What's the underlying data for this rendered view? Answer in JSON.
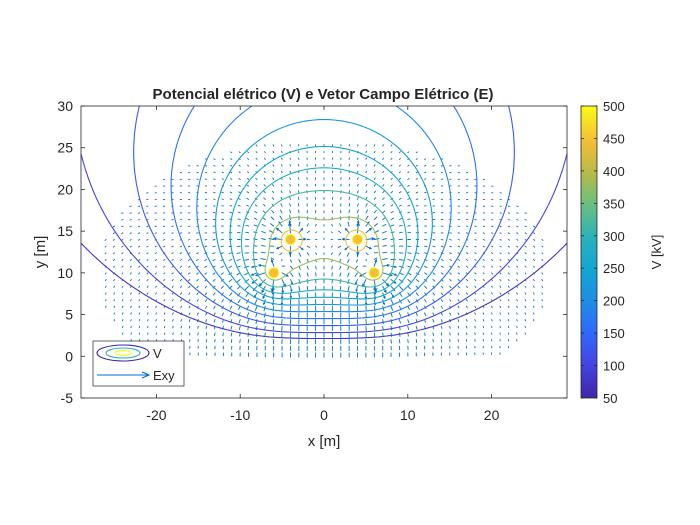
{
  "chart_data": {
    "type": "contour+quiver",
    "title": "Potencial elétrico (V) e Vetor Campo Elétrico (E)",
    "xlabel": "x [m]",
    "ylabel": "y [m]",
    "xlim": [
      -29,
      29
    ],
    "ylim": [
      -5,
      30
    ],
    "xticks": [
      "-20",
      "-10",
      "0",
      "10",
      "20"
    ],
    "yticks": [
      "-5",
      "0",
      "5",
      "10",
      "15",
      "20",
      "25",
      "30"
    ],
    "grid": false,
    "conductors": [
      {
        "x": -6,
        "y": 10
      },
      {
        "x": -4,
        "y": 14
      },
      {
        "x": 4,
        "y": 14
      },
      {
        "x": 6,
        "y": 10
      }
    ],
    "contour_levels_kV": [
      75,
      100,
      130,
      160,
      190,
      220,
      250,
      280,
      320,
      380,
      440
    ],
    "colorbar": {
      "label": "V [kV]",
      "min": 50,
      "max": 500,
      "ticks": [
        "50",
        "100",
        "150",
        "200",
        "250",
        "300",
        "350",
        "400",
        "450",
        "500"
      ]
    },
    "legend": {
      "position": "bottom-left",
      "entries": [
        "V",
        "Exy"
      ]
    },
    "colors": {
      "parula_low": "#3e26a8",
      "parula_mid": "#2ab2b8",
      "parula_high": "#f9fb15",
      "quiver": "#0072bd"
    }
  }
}
